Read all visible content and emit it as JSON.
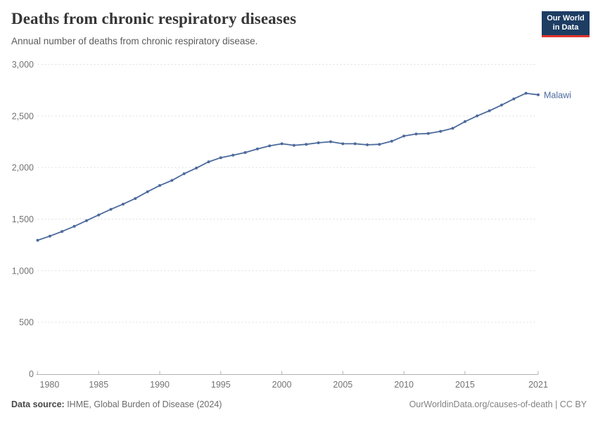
{
  "header": {
    "title": "Deaths from chronic respiratory diseases",
    "subtitle": "Annual number of deaths from chronic respiratory disease.",
    "logo": {
      "line1": "Our World",
      "line2": "in Data"
    }
  },
  "chart_data": {
    "type": "line",
    "title": "Deaths from chronic respiratory diseases",
    "entity_label": "Malawi",
    "line_color": "#4c6a9c",
    "grid": "dashed-horizontal",
    "legend_position": "end-of-line",
    "xlim": [
      1980,
      2021
    ],
    "ylim": [
      0,
      3000
    ],
    "x": [
      1980,
      1981,
      1982,
      1983,
      1984,
      1985,
      1986,
      1987,
      1988,
      1989,
      1990,
      1991,
      1992,
      1993,
      1994,
      1995,
      1996,
      1997,
      1998,
      1999,
      2000,
      2001,
      2002,
      2003,
      2004,
      2005,
      2006,
      2007,
      2008,
      2009,
      2010,
      2011,
      2012,
      2013,
      2014,
      2015,
      2016,
      2017,
      2018,
      2019,
      2020,
      2021
    ],
    "values": [
      1295,
      1335,
      1380,
      1430,
      1485,
      1540,
      1595,
      1645,
      1700,
      1765,
      1825,
      1875,
      1940,
      1995,
      2055,
      2095,
      2120,
      2145,
      2180,
      2210,
      2230,
      2215,
      2225,
      2240,
      2250,
      2230,
      2230,
      2220,
      2225,
      2255,
      2305,
      2325,
      2330,
      2350,
      2380,
      2445,
      2500,
      2550,
      2605,
      2665,
      2720,
      2705
    ],
    "yticks": [
      {
        "value": 0,
        "label": "0"
      },
      {
        "value": 500,
        "label": "500"
      },
      {
        "value": 1000,
        "label": "1,000"
      },
      {
        "value": 1500,
        "label": "1,500"
      },
      {
        "value": 2000,
        "label": "2,000"
      },
      {
        "value": 2500,
        "label": "2,500"
      },
      {
        "value": 3000,
        "label": "3,000"
      }
    ],
    "xticks": [
      {
        "value": 1980,
        "label": "1980"
      },
      {
        "value": 1985,
        "label": "1985"
      },
      {
        "value": 1990,
        "label": "1990"
      },
      {
        "value": 1995,
        "label": "1995"
      },
      {
        "value": 2000,
        "label": "2000"
      },
      {
        "value": 2005,
        "label": "2005"
      },
      {
        "value": 2010,
        "label": "2010"
      },
      {
        "value": 2015,
        "label": "2015"
      },
      {
        "value": 2021,
        "label": "2021"
      }
    ]
  },
  "footer": {
    "source_label": "Data source:",
    "source_text": " IHME, Global Burden of Disease (2024)",
    "credit": "OurWorldinData.org/causes-of-death | CC BY"
  }
}
